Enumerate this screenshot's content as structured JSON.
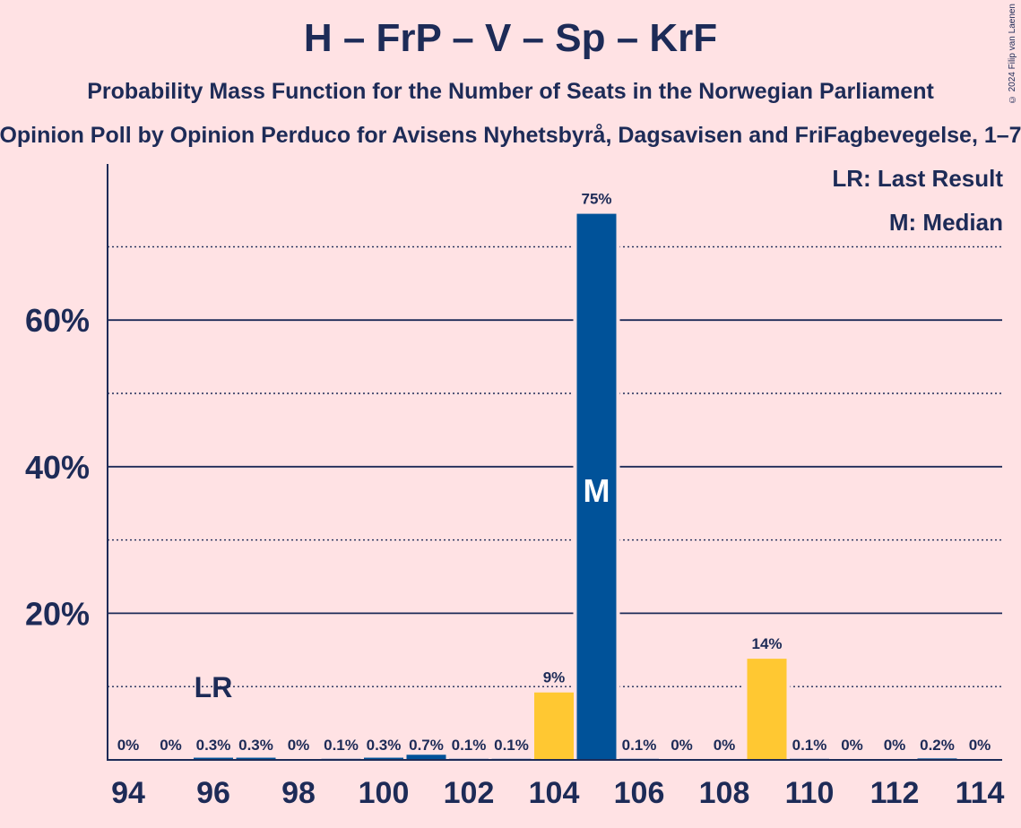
{
  "title": "H – FrP – V – Sp – KrF",
  "subtitle": "Probability Mass Function for the Number of Seats in the Norwegian Parliament",
  "subsubtitle": "Opinion Poll by Opinion Perduco for Avisens Nyhetsbyrå, Dagsavisen and FriFagbevegelse, 1–7",
  "copyright": "© 2024 Filip van Laenen",
  "legend": {
    "last_result": "LR: Last Result",
    "median": "M: Median"
  },
  "colors": {
    "background": "#ffe2e4",
    "navy": "#1d2b57",
    "blue_bar": "#005299",
    "yellow_bar": "#ffc832"
  },
  "chart_data": {
    "type": "bar",
    "x": [
      94,
      95,
      96,
      97,
      98,
      99,
      100,
      101,
      102,
      103,
      104,
      105,
      106,
      107,
      108,
      109,
      110,
      111,
      112,
      113,
      114
    ],
    "values": [
      0,
      0,
      0.3,
      0.3,
      0,
      0.1,
      0.3,
      0.7,
      0.1,
      0.1,
      9.2,
      74.5,
      0.1,
      0,
      0,
      13.8,
      0.1,
      0,
      0,
      0.2,
      0
    ],
    "labels": [
      "0%",
      "0%",
      "0.3%",
      "0.3%",
      "0%",
      "0.1%",
      "0.3%",
      "0.7%",
      "0.1%",
      "0.1%",
      "9%",
      "75%",
      "0.1%",
      "0%",
      "0%",
      "14%",
      "0.1%",
      "0%",
      "0%",
      "0.2%",
      "0%"
    ],
    "bar_colors": [
      "blue",
      "blue",
      "blue",
      "blue",
      "blue",
      "blue",
      "blue",
      "blue",
      "blue",
      "blue",
      "yellow",
      "blue",
      "blue",
      "blue",
      "blue",
      "yellow",
      "blue",
      "blue",
      "blue",
      "blue",
      "blue"
    ],
    "x_tick_labels": [
      "94",
      "96",
      "98",
      "100",
      "102",
      "104",
      "106",
      "108",
      "110",
      "112",
      "114"
    ],
    "y_ticks": [
      20,
      40,
      60
    ],
    "y_tick_labels": [
      "20%",
      "40%",
      "60%"
    ],
    "ylim": [
      0,
      81
    ],
    "last_result_seat": 96,
    "last_result_label": "LR",
    "median_seat": 105,
    "median_label": "M"
  }
}
